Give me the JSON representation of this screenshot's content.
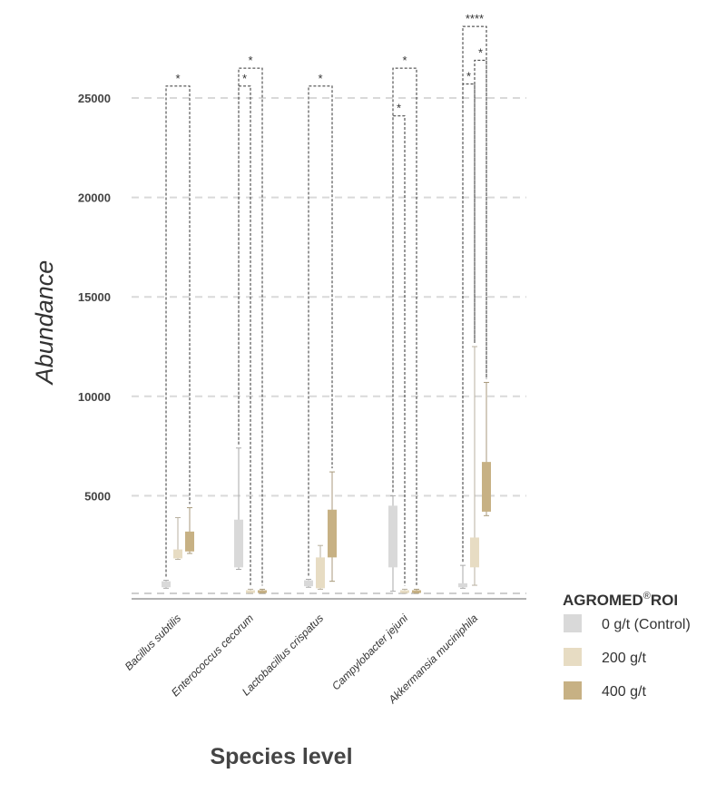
{
  "chart_data": {
    "type": "box",
    "xlabel": "Species level",
    "ylabel": "Abundance",
    "ylim": [
      0,
      25000
    ],
    "yticks": [
      5000,
      10000,
      15000,
      20000,
      25000
    ],
    "grid": "horizontal-dashed",
    "legend": {
      "title_main": "AGROMED",
      "title_reg": "®",
      "title_tail": "ROI",
      "placement": "bottom-right",
      "entries": [
        {
          "label": "0 g/t (Control)",
          "color": "#d9d9d9"
        },
        {
          "label": "200 g/t",
          "color": "#e7dcc3"
        },
        {
          "label": "400 g/t",
          "color": "#c7b184"
        }
      ]
    },
    "categories": [
      "Bacillus subtilis",
      "Enterococcus cecorum",
      "Lactobacillus crispatus",
      "Campylobacter jejuni",
      "Akkermansia muciniphila"
    ],
    "series": [
      {
        "name": "0 g/t (Control)",
        "boxes": [
          {
            "min": 350,
            "q1": 400,
            "median": 550,
            "q3": 700,
            "max": 750
          },
          {
            "min": 1300,
            "q1": 1400,
            "median": 2500,
            "q3": 3800,
            "max": 7400
          },
          {
            "min": 400,
            "q1": 450,
            "median": 600,
            "q3": 750,
            "max": 800
          },
          {
            "min": 200,
            "q1": 1400,
            "median": 3500,
            "q3": 4500,
            "max": 5000
          },
          {
            "min": 350,
            "q1": 400,
            "median": 550,
            "q3": 600,
            "max": 1500
          }
        ]
      },
      {
        "name": "200 g/t",
        "boxes": [
          {
            "min": 1800,
            "q1": 1850,
            "median": 2100,
            "q3": 2300,
            "max": 3900
          },
          {
            "min": 100,
            "q1": 150,
            "median": 200,
            "q3": 250,
            "max": 300
          },
          {
            "min": 300,
            "q1": 350,
            "median": 1000,
            "q3": 1900,
            "max": 2500
          },
          {
            "min": 100,
            "q1": 150,
            "median": 200,
            "q3": 250,
            "max": 300
          },
          {
            "min": 500,
            "q1": 1400,
            "median": 2200,
            "q3": 2900,
            "max": 12500
          }
        ]
      },
      {
        "name": "400 g/t",
        "boxes": [
          {
            "min": 2100,
            "q1": 2200,
            "median": 2800,
            "q3": 3200,
            "max": 4400
          },
          {
            "min": 100,
            "q1": 150,
            "median": 200,
            "q3": 250,
            "max": 300
          },
          {
            "min": 700,
            "q1": 1900,
            "median": 3200,
            "q3": 4300,
            "max": 6200
          },
          {
            "min": 100,
            "q1": 150,
            "median": 200,
            "q3": 250,
            "max": 300
          },
          {
            "min": 4000,
            "q1": 4200,
            "median": 5500,
            "q3": 6700,
            "max": 10700
          }
        ]
      }
    ],
    "significance": [
      {
        "category": 0,
        "from": 0,
        "to": 2,
        "label": "*",
        "y": 25600
      },
      {
        "category": 1,
        "from": 0,
        "to": 1,
        "label": "*",
        "y": 25600
      },
      {
        "category": 1,
        "from": 0,
        "to": 2,
        "label": "*",
        "y": 26500
      },
      {
        "category": 2,
        "from": 0,
        "to": 2,
        "label": "*",
        "y": 25600
      },
      {
        "category": 3,
        "from": 0,
        "to": 1,
        "label": "*",
        "y": 24100
      },
      {
        "category": 3,
        "from": 0,
        "to": 2,
        "label": "*",
        "y": 26500
      },
      {
        "category": 4,
        "from": 0,
        "to": 1,
        "label": "*",
        "y": 25700
      },
      {
        "category": 4,
        "from": 1,
        "to": 2,
        "label": "*",
        "y": 26900
      },
      {
        "category": 4,
        "from": 0,
        "to": 2,
        "label": "****",
        "y": 28600
      }
    ]
  }
}
